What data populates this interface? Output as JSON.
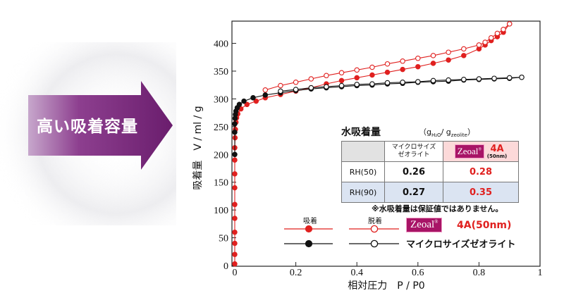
{
  "banner": {
    "text": "高い吸着容量"
  },
  "colors": {
    "adsorb_red": "#e0201f",
    "adsorb_black": "#111111",
    "arrow_purple": "#7d2a80",
    "brand_magenta": "#a81466"
  },
  "chart_data": {
    "type": "line",
    "xlabel": "相対圧力　P / P0",
    "ylabel": "吸着量　V / ml / g",
    "xlim": [
      0,
      1
    ],
    "ylim": [
      0,
      440
    ],
    "xticks": [
      "0",
      "0.2",
      "0.4",
      "0.6",
      "0.8",
      "1"
    ],
    "yticks": [
      "0",
      "50",
      "100",
      "150",
      "200",
      "250",
      "300",
      "350",
      "400"
    ],
    "series": [
      {
        "name": "4A(50nm) 吸着",
        "color": "#e0201f",
        "marker": "filled",
        "x": [
          0.0,
          0.0,
          0.0,
          0.0,
          0.0,
          0.0,
          0.0,
          0.0,
          0.0,
          0.0,
          0.001,
          0.002,
          0.004,
          0.006,
          0.01,
          0.02,
          0.04,
          0.07,
          0.1,
          0.15,
          0.2,
          0.25,
          0.3,
          0.35,
          0.4,
          0.45,
          0.5,
          0.55,
          0.6,
          0.65,
          0.7,
          0.75,
          0.8,
          0.82,
          0.84,
          0.86,
          0.88,
          0.9
        ],
        "y": [
          3,
          20,
          40,
          60,
          85,
          110,
          140,
          165,
          190,
          212,
          230,
          245,
          258,
          266,
          273,
          282,
          290,
          296,
          302,
          308,
          314,
          320,
          327,
          333,
          338,
          343,
          348,
          353,
          358,
          364,
          370,
          378,
          390,
          397,
          405,
          412,
          420,
          435
        ]
      },
      {
        "name": "4A(50nm) 脱着",
        "color": "#e0201f",
        "marker": "open",
        "x": [
          0.9,
          0.88,
          0.86,
          0.84,
          0.82,
          0.8,
          0.75,
          0.7,
          0.65,
          0.6,
          0.55,
          0.5,
          0.45,
          0.4,
          0.35,
          0.3,
          0.25,
          0.2,
          0.15,
          0.1
        ],
        "y": [
          435,
          425,
          418,
          410,
          402,
          397,
          390,
          384,
          378,
          373,
          368,
          363,
          357,
          352,
          347,
          342,
          336,
          330,
          324,
          316
        ]
      },
      {
        "name": "マイクロサイズゼオライト 吸着",
        "color": "#111111",
        "marker": "filled",
        "x": [
          0.0,
          0.0,
          0.0,
          0.001,
          0.002,
          0.004,
          0.008,
          0.015,
          0.03,
          0.06,
          0.1,
          0.15,
          0.2,
          0.25,
          0.3,
          0.35,
          0.4,
          0.45,
          0.5,
          0.55,
          0.6,
          0.65,
          0.7,
          0.75,
          0.8,
          0.85,
          0.9,
          0.94
        ],
        "y": [
          200,
          240,
          255,
          265,
          272,
          278,
          284,
          290,
          296,
          302,
          307,
          311,
          315,
          318,
          320,
          322,
          324,
          325,
          327,
          328,
          330,
          331,
          332,
          334,
          335,
          336,
          337,
          339
        ]
      },
      {
        "name": "マイクロサイズゼオライト 脱着",
        "color": "#111111",
        "marker": "open",
        "x": [
          0.94,
          0.9,
          0.85,
          0.8,
          0.75,
          0.7,
          0.65,
          0.6,
          0.55,
          0.5,
          0.45,
          0.4,
          0.35,
          0.3,
          0.25,
          0.2,
          0.15
        ],
        "y": [
          339,
          338,
          337,
          336,
          335,
          334,
          333,
          331,
          330,
          329,
          327,
          326,
          324,
          322,
          320,
          317,
          314
        ]
      }
    ]
  },
  "water_table": {
    "title": "水吸着量",
    "unit": "（g",
    "unit_sub1": "H₂O",
    "unit_mid": "/ g",
    "unit_sub2": "zeolite",
    "unit_end": "）",
    "col1_line1": "マイクロサイズ",
    "col1_line2": "ゼオライト",
    "col2_brand": "Zeoal",
    "col2_reg": "®",
    "col2_grade": "4A",
    "col2_size": "(50nm)",
    "rows": [
      {
        "label": "RH(50)",
        "micro": "0.26",
        "zeoal": "0.28"
      },
      {
        "label": "RH(90)",
        "micro": "0.27",
        "zeoal": "0.35"
      }
    ],
    "note": "※水吸着量は保証値ではありません。"
  },
  "legend": {
    "adsorption": "吸着",
    "desorption": "脱着",
    "brand": "Zeoal",
    "brand_reg": "®",
    "series1": "4A(50nm)",
    "series2": "マイクロサイズゼオライト"
  }
}
